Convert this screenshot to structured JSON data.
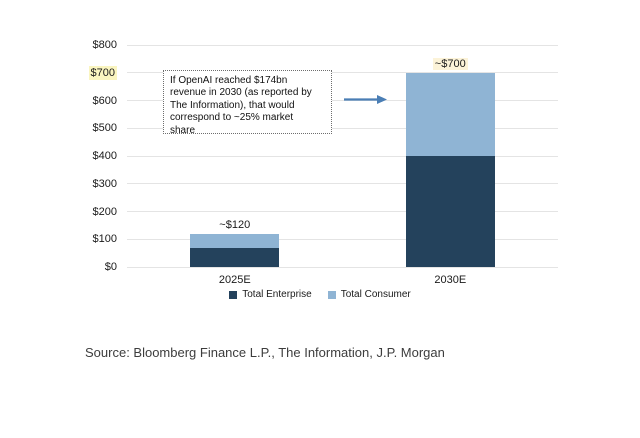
{
  "chart_data": {
    "type": "bar",
    "stacked": true,
    "categories": [
      "2025E",
      "2030E"
    ],
    "series": [
      {
        "name": "Total Enterprise",
        "color": "#24425c",
        "values": [
          70,
          400
        ]
      },
      {
        "name": "Total Consumer",
        "color": "#8fb4d4",
        "values": [
          50,
          300
        ]
      }
    ],
    "total_labels": [
      {
        "text": "~$120",
        "highlight": false
      },
      {
        "text": "~$700",
        "highlight": true
      }
    ],
    "y_ticks": [
      {
        "value": 0,
        "label": "$0",
        "highlight": false
      },
      {
        "value": 100,
        "label": "$100",
        "highlight": false
      },
      {
        "value": 200,
        "label": "$200",
        "highlight": false
      },
      {
        "value": 300,
        "label": "$300",
        "highlight": false
      },
      {
        "value": 400,
        "label": "$400",
        "highlight": false
      },
      {
        "value": 500,
        "label": "$500",
        "highlight": false
      },
      {
        "value": 600,
        "label": "$600",
        "highlight": false
      },
      {
        "value": 700,
        "label": "$700",
        "highlight": true
      },
      {
        "value": 800,
        "label": "$800",
        "highlight": false
      }
    ],
    "ylim": [
      0,
      800
    ],
    "xlabel": "",
    "ylabel": "",
    "grid": true,
    "legend_position": "bottom"
  },
  "annotation": {
    "lines": [
      "If OpenAI reached $174bn",
      "revenue in 2030 (as reported by",
      "The Information), that would",
      "correspond to ~25% market",
      "share"
    ]
  },
  "source": {
    "text": "Source: Bloomberg Finance L.P., The Information, J.P. Morgan"
  },
  "colors": {
    "enterprise": "#24425c",
    "consumer": "#8fb4d4",
    "gridline": "#e4e4e4",
    "axis_highlight": "#faf5c0",
    "label_highlight": "#fcf3d8",
    "arrow": "#4a7eb5",
    "source_text": "#3d3d3d"
  }
}
